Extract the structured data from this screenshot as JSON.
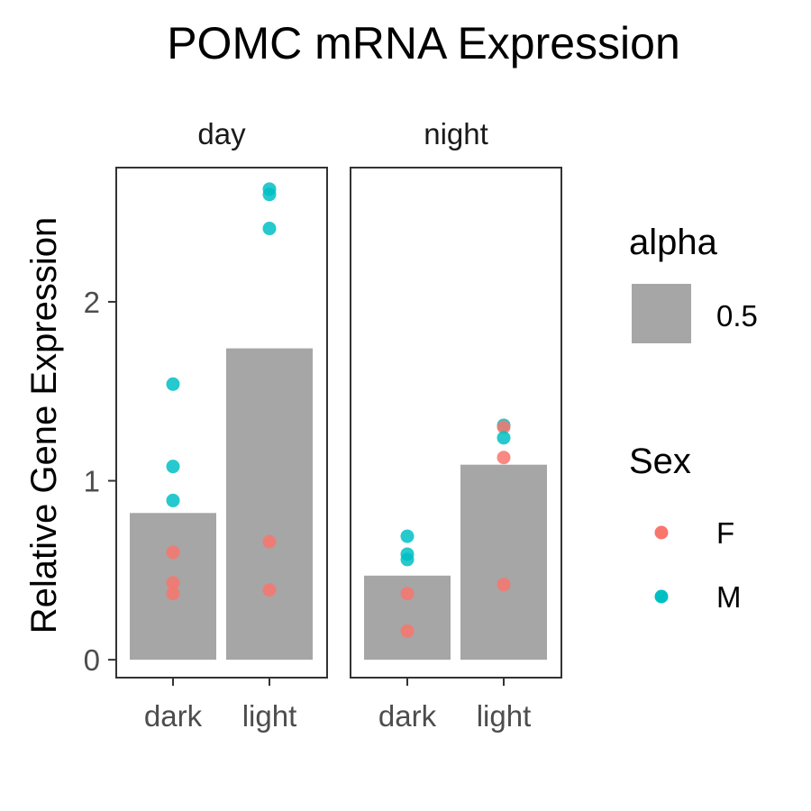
{
  "chart_data": {
    "type": "bar",
    "title": "POMC mRNA Expression",
    "xlabel": "",
    "ylabel": "Relative Gene Expression",
    "ylim": [
      -0.1,
      2.75
    ],
    "yticks": [
      "0",
      "1",
      "2"
    ],
    "yticks_values": [
      0,
      1,
      2
    ],
    "grid": false,
    "legend_placement": "right",
    "bar_color": "#a6a6a6",
    "facets": [
      {
        "label": "day",
        "categories": [
          "dark",
          "light"
        ],
        "bar_values": [
          0.82,
          1.74
        ],
        "points": [
          {
            "category": "dark",
            "sex": "M",
            "value": 1.54
          },
          {
            "category": "dark",
            "sex": "M",
            "value": 1.08
          },
          {
            "category": "dark",
            "sex": "M",
            "value": 0.89
          },
          {
            "category": "dark",
            "sex": "F",
            "value": 0.6
          },
          {
            "category": "dark",
            "sex": "F",
            "value": 0.43
          },
          {
            "category": "dark",
            "sex": "F",
            "value": 0.37
          },
          {
            "category": "light",
            "sex": "M",
            "value": 2.63
          },
          {
            "category": "light",
            "sex": "M",
            "value": 2.6
          },
          {
            "category": "light",
            "sex": "M",
            "value": 2.41
          },
          {
            "category": "light",
            "sex": "F",
            "value": 0.66
          },
          {
            "category": "light",
            "sex": "F",
            "value": 0.39
          }
        ]
      },
      {
        "label": "night",
        "categories": [
          "dark",
          "light"
        ],
        "bar_values": [
          0.47,
          1.09
        ],
        "points": [
          {
            "category": "dark",
            "sex": "M",
            "value": 0.69
          },
          {
            "category": "dark",
            "sex": "M",
            "value": 0.59
          },
          {
            "category": "dark",
            "sex": "M",
            "value": 0.56
          },
          {
            "category": "dark",
            "sex": "F",
            "value": 0.37
          },
          {
            "category": "dark",
            "sex": "F",
            "value": 0.16
          },
          {
            "category": "light",
            "sex": "M",
            "value": 1.31
          },
          {
            "category": "light",
            "sex": "F",
            "value": 1.3
          },
          {
            "category": "light",
            "sex": "M",
            "value": 1.24
          },
          {
            "category": "light",
            "sex": "F",
            "value": 1.13
          },
          {
            "category": "light",
            "sex": "F",
            "value": 0.42
          }
        ]
      }
    ],
    "legend": {
      "alpha": {
        "title": "alpha",
        "value_label": "0.5"
      },
      "sex": {
        "title": "Sex",
        "entries": [
          {
            "label": "F",
            "color": "#f8766d"
          },
          {
            "label": "M",
            "color": "#00bfc4"
          }
        ]
      }
    }
  }
}
